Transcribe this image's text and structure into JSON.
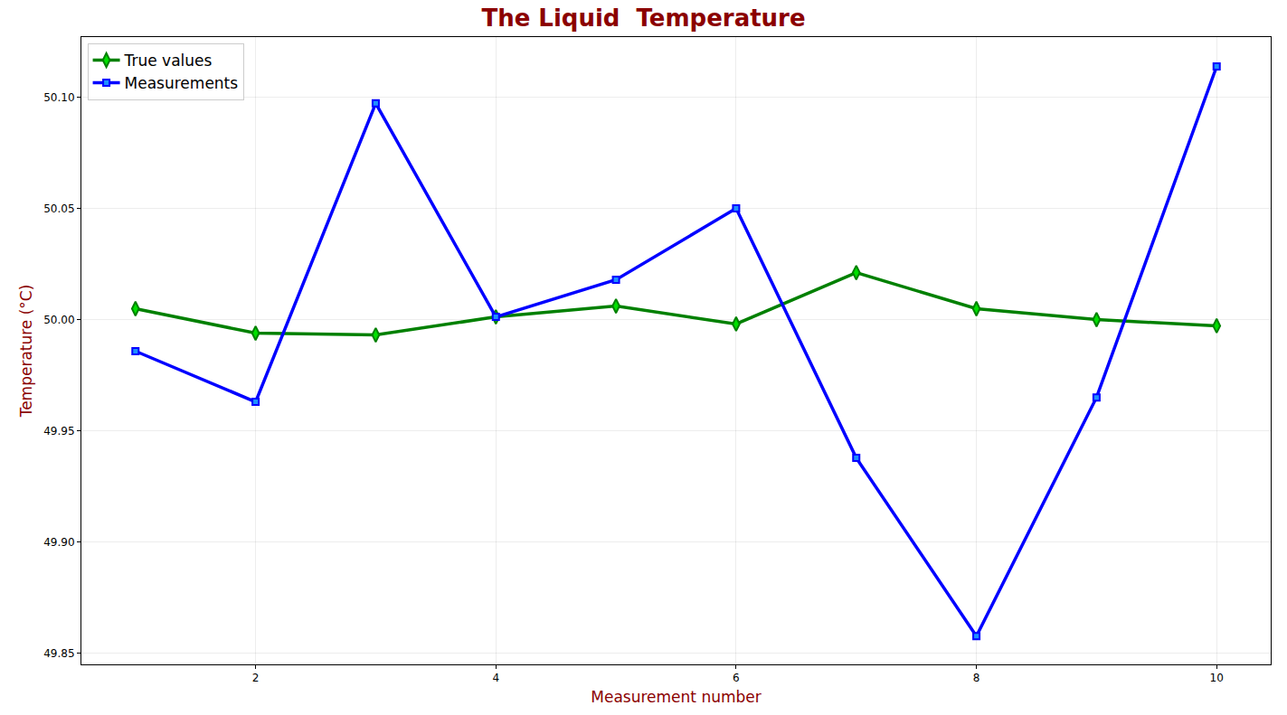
{
  "chart_data": {
    "type": "line",
    "title": "The Liquid  Temperature",
    "x_label": "Measurement number",
    "y_label": "Temperature (°C)",
    "x": [
      1,
      2,
      3,
      4,
      5,
      6,
      7,
      8,
      9,
      10
    ],
    "series": [
      {
        "name": "True values",
        "color": "#008000",
        "marker": "diamond",
        "line_style": "solid",
        "values": [
          50.0049,
          49.9939,
          49.9931,
          50.0012,
          50.0061,
          49.998,
          50.0211,
          50.0049,
          50.0,
          49.9972
        ]
      },
      {
        "name": "Measurements",
        "color": "#0000ff",
        "marker": "square",
        "line_style": "solid",
        "values": [
          49.9858,
          49.963,
          50.0972,
          50.0012,
          50.0179,
          50.05,
          49.9378,
          49.8577,
          49.965,
          50.1138
        ]
      }
    ],
    "xlim": [
      0.55,
      10.45
    ],
    "xticks": [
      2,
      4,
      6,
      8,
      10
    ],
    "ylim": [
      49.845,
      50.127
    ],
    "yticks": [
      49.85,
      {
        "value": 49.9,
        "label": "49.90"
      },
      49.95,
      {
        "value": 50.0,
        "label": "50.00"
      },
      50.05,
      {
        "value": 50.1,
        "label": "50.10"
      }
    ],
    "grid": true,
    "legend": "upper left"
  }
}
